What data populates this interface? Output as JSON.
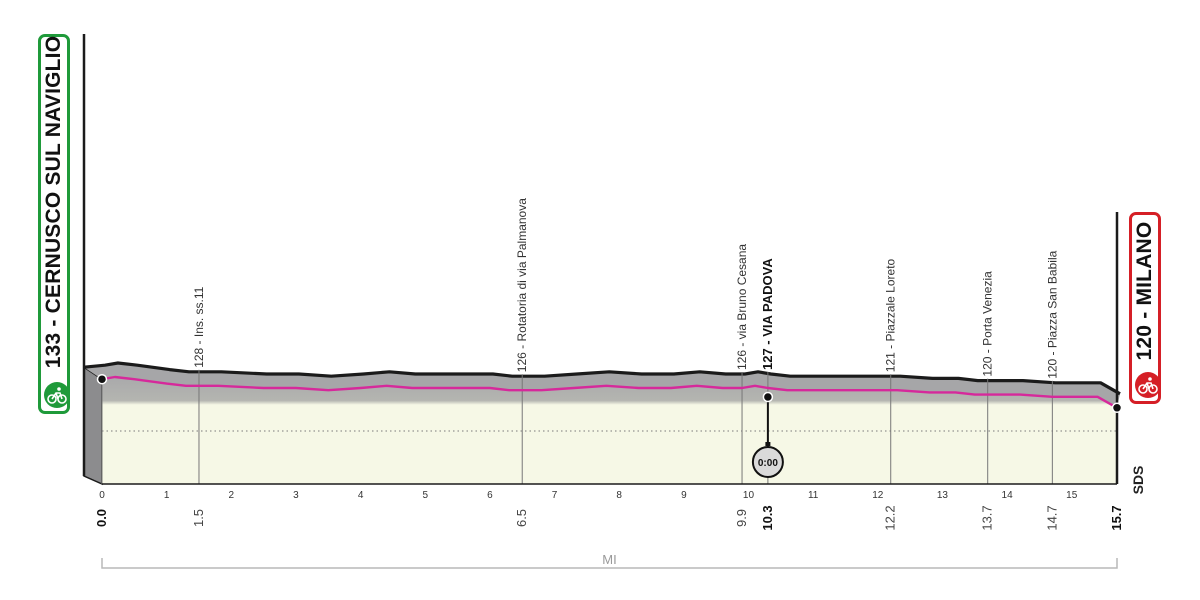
{
  "colors": {
    "start_green": "#1f9a3a",
    "finish_red": "#d51f26",
    "pink_line": "#d6299b",
    "fill_top": "#a9a9ab",
    "fill_bottom": "#f6f8e6",
    "profile_line": "#1b1b1b",
    "scale_gray": "#b9b9b9"
  },
  "start_badge": {
    "label": "133 - CERNUSCO SUL NAVIGLIO",
    "icon": "cyclist-icon"
  },
  "finish_badge": {
    "label": "120 - MILANO",
    "icon": "cyclist-icon"
  },
  "unit_label": "MI",
  "brand_mark": "SDS",
  "timer": {
    "label": "0:00",
    "icon": "stopwatch-icon"
  },
  "chart_data": {
    "type": "area",
    "title": "",
    "xlabel": "MI",
    "ylabel": "",
    "xlim": [
      0,
      15.7
    ],
    "ylim": [
      110,
      140
    ],
    "start": {
      "km": 0.0,
      "alt": 133,
      "name": "CERNUSCO SUL NAVIGLIO"
    },
    "finish": {
      "km": 15.7,
      "alt": 120,
      "name": "MILANO"
    },
    "x_ticks": [
      0,
      1,
      2,
      3,
      4,
      5,
      6,
      7,
      8,
      9,
      10,
      11,
      12,
      13,
      14,
      15
    ],
    "profile": [
      [
        0.0,
        133
      ],
      [
        0.2,
        134
      ],
      [
        0.5,
        133
      ],
      [
        1.0,
        131
      ],
      [
        1.3,
        130
      ],
      [
        1.8,
        130
      ],
      [
        2.5,
        129
      ],
      [
        3.0,
        129
      ],
      [
        3.5,
        128
      ],
      [
        4.0,
        129
      ],
      [
        4.4,
        130
      ],
      [
        4.8,
        129
      ],
      [
        5.5,
        129
      ],
      [
        6.0,
        129
      ],
      [
        6.3,
        128
      ],
      [
        6.8,
        128
      ],
      [
        7.3,
        129
      ],
      [
        7.8,
        130
      ],
      [
        8.3,
        129
      ],
      [
        8.8,
        129
      ],
      [
        9.2,
        130
      ],
      [
        9.6,
        129
      ],
      [
        9.9,
        129
      ],
      [
        10.1,
        130
      ],
      [
        10.3,
        129
      ],
      [
        10.6,
        128
      ],
      [
        11.0,
        128
      ],
      [
        11.5,
        128
      ],
      [
        12.0,
        128
      ],
      [
        12.3,
        128
      ],
      [
        12.8,
        127
      ],
      [
        13.2,
        127
      ],
      [
        13.5,
        126
      ],
      [
        13.8,
        126
      ],
      [
        14.2,
        126
      ],
      [
        14.7,
        125
      ],
      [
        15.0,
        125
      ],
      [
        15.4,
        125
      ],
      [
        15.7,
        120
      ]
    ],
    "waypoints": [
      {
        "km": 1.5,
        "alt": "128",
        "name": "Ins. ss.11",
        "emph": false
      },
      {
        "km": 6.5,
        "alt": "126",
        "name": "Rotatoria di via Palmanova",
        "emph": false
      },
      {
        "km": 9.9,
        "alt": "126",
        "name": "via Bruno Cesana",
        "emph": false
      },
      {
        "km": 10.3,
        "alt": "127",
        "name": "VIA PADOVA",
        "emph": true
      },
      {
        "km": 12.2,
        "alt": "121",
        "name": "Piazzale Loreto",
        "emph": false
      },
      {
        "km": 13.7,
        "alt": "120",
        "name": "Porta Venezia",
        "emph": false
      },
      {
        "km": 14.7,
        "alt": "120",
        "name": "Piazza San Babila",
        "emph": false
      }
    ],
    "distance_labels": [
      {
        "km": 0.0,
        "text": "0.0",
        "bold": true
      },
      {
        "km": 1.5,
        "text": "1.5",
        "bold": false
      },
      {
        "km": 6.5,
        "text": "6.5",
        "bold": false
      },
      {
        "km": 9.9,
        "text": "9.9",
        "bold": false
      },
      {
        "km": 10.3,
        "text": "10.3",
        "bold": true
      },
      {
        "km": 12.2,
        "text": "12.2",
        "bold": false
      },
      {
        "km": 13.7,
        "text": "13.7",
        "bold": false
      },
      {
        "km": 14.7,
        "text": "14.7",
        "bold": false
      },
      {
        "km": 15.7,
        "text": "15.7",
        "bold": true
      }
    ],
    "intermediate_time_km": 10.3
  }
}
